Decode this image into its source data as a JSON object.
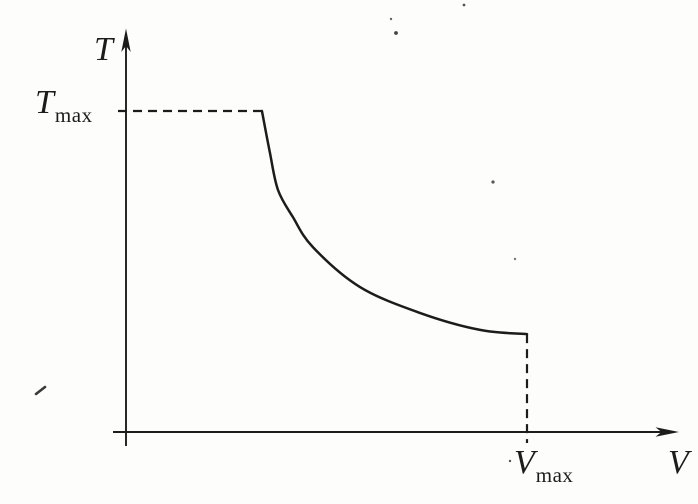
{
  "figure": {
    "background_color": "#fdfdfc",
    "ink_color": "#1c1c1c",
    "y_axis_label": "T",
    "x_axis_label": "V",
    "t_max_label": {
      "base": "T",
      "sub": "max"
    },
    "v_max_label": {
      "base": "V",
      "sub": "max"
    }
  },
  "chart_data": {
    "type": "line",
    "title": "",
    "xlabel": "V",
    "ylabel": "T",
    "x_units": "fraction of V_max",
    "y_units": "fraction of T_max",
    "xlim": [
      0,
      1.17
    ],
    "ylim": [
      0,
      1.25
    ],
    "grid": false,
    "legend": "none",
    "axis_style": "arrow-tipped axes, no numeric ticks",
    "series": [
      {
        "name": "T versus V curve (hyperbola-like decrease from T_max plateau edge to V_max)",
        "points": [
          [
            0.339,
            1.0
          ],
          [
            0.359,
            0.869
          ],
          [
            0.379,
            0.754
          ],
          [
            0.416,
            0.67
          ],
          [
            0.466,
            0.576
          ],
          [
            0.583,
            0.452
          ],
          [
            0.733,
            0.371
          ],
          [
            0.883,
            0.318
          ],
          [
            1.0,
            0.305
          ]
        ]
      }
    ],
    "annotations": [
      {
        "type": "dashed_guide",
        "orientation": "horizontal",
        "at_y": 1.0,
        "from_x": 0,
        "to_x": 0.339,
        "label": "T_max"
      },
      {
        "type": "dashed_guide",
        "orientation": "vertical",
        "at_x": 1.0,
        "from_y": 0.305,
        "to_y": 0,
        "label": "V_max"
      },
      {
        "type": "axis_tick_label",
        "axis": "y",
        "at": 1.0,
        "text": "T_max"
      },
      {
        "type": "axis_tick_label",
        "axis": "x",
        "at": 1.0,
        "text": "V_max"
      }
    ]
  }
}
